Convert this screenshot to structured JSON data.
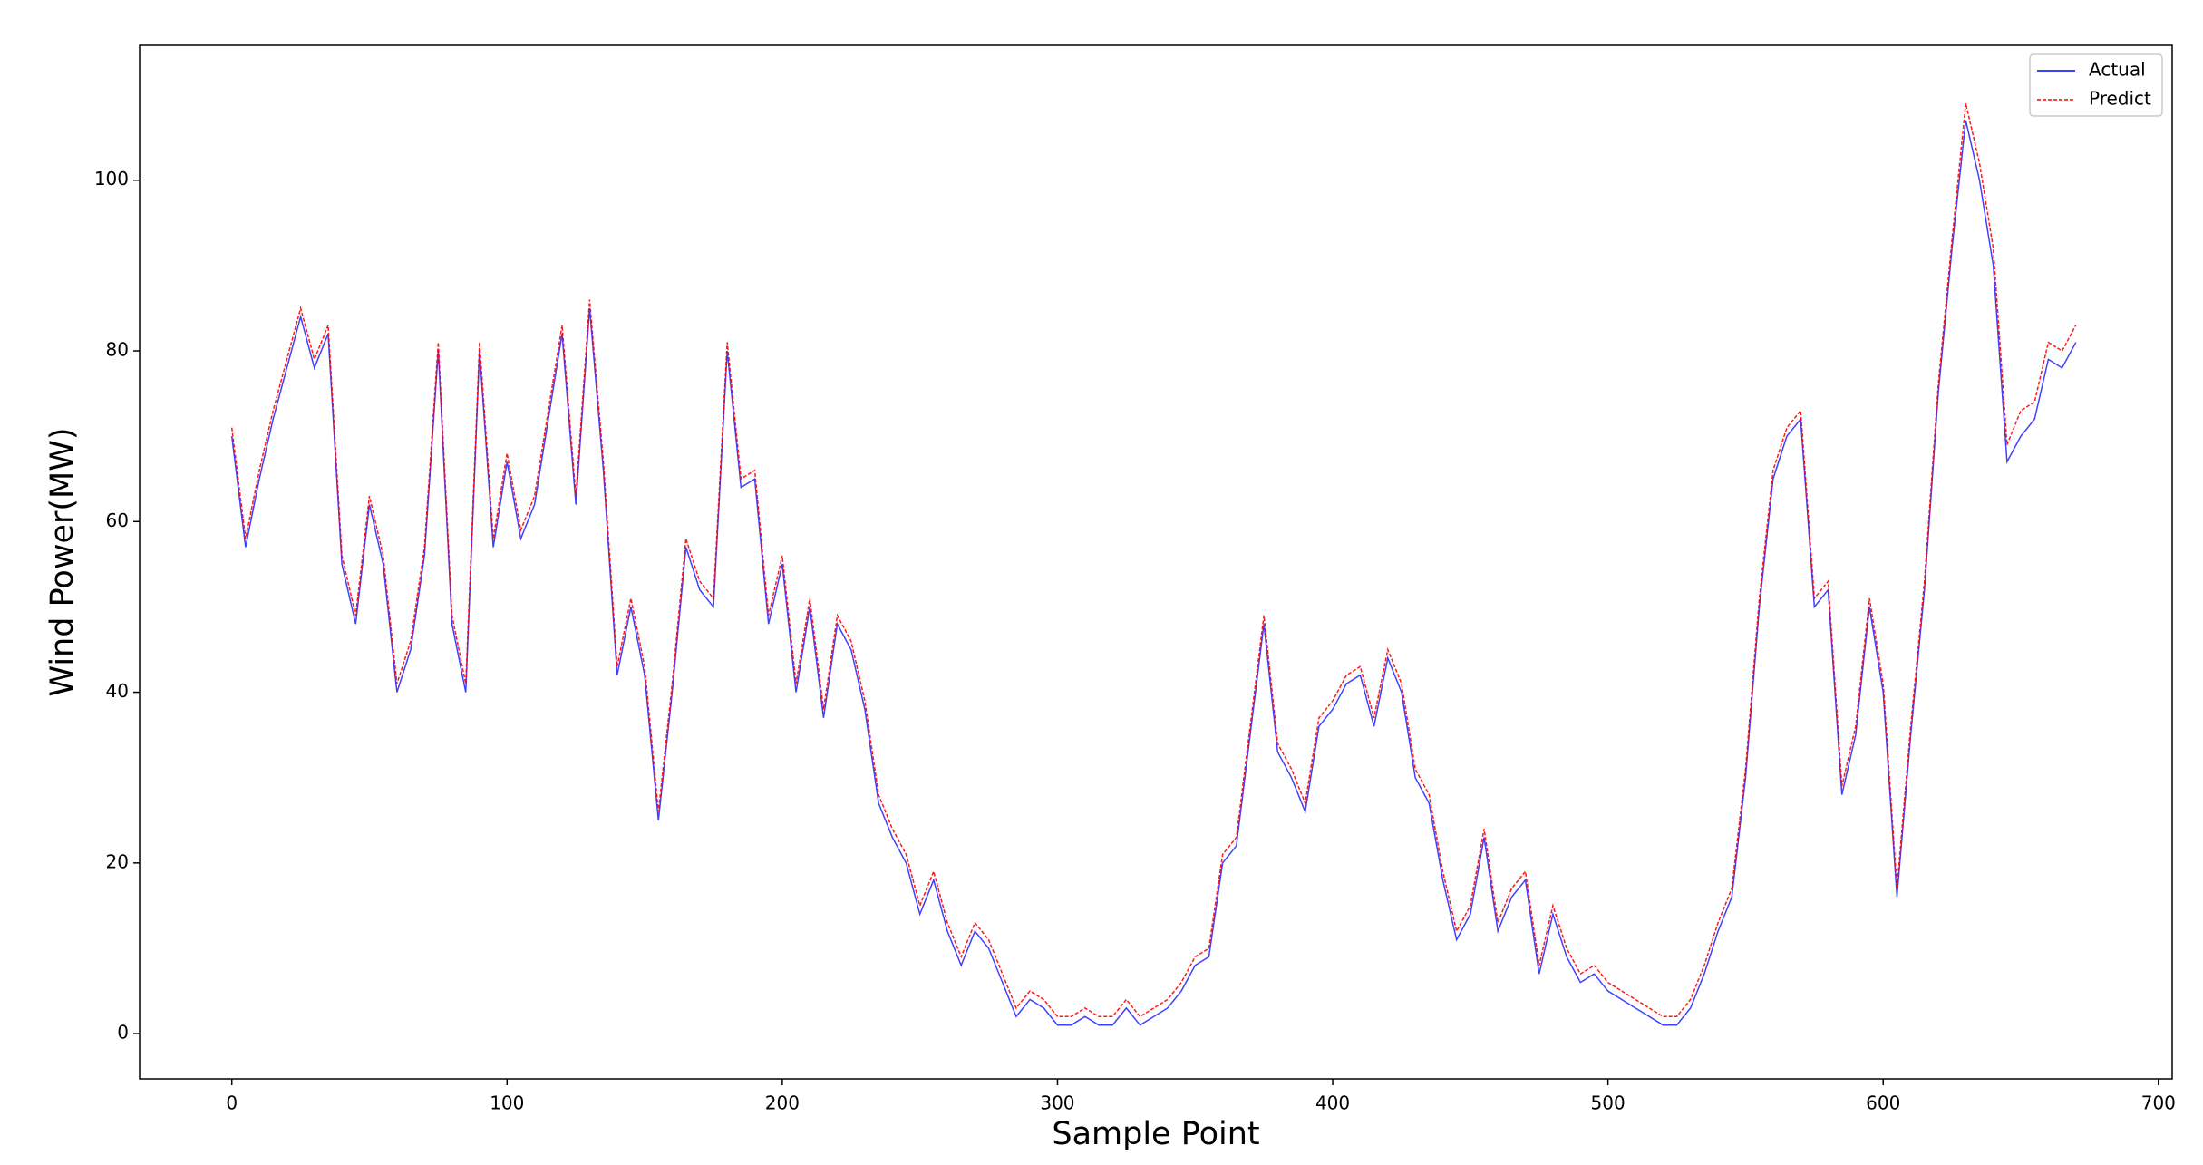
{
  "chart_data": {
    "type": "line",
    "xlabel": "Sample Point",
    "ylabel": "Wind Power(MW)",
    "x": [
      0,
      5,
      10,
      15,
      20,
      25,
      30,
      35,
      40,
      45,
      50,
      55,
      60,
      65,
      70,
      75,
      80,
      85,
      90,
      95,
      100,
      105,
      110,
      115,
      120,
      125,
      130,
      135,
      140,
      145,
      150,
      155,
      160,
      165,
      170,
      175,
      180,
      185,
      190,
      195,
      200,
      205,
      210,
      215,
      220,
      225,
      230,
      235,
      240,
      245,
      250,
      255,
      260,
      265,
      270,
      275,
      280,
      285,
      290,
      295,
      300,
      305,
      310,
      315,
      320,
      325,
      330,
      335,
      340,
      345,
      350,
      355,
      360,
      365,
      370,
      375,
      380,
      385,
      390,
      395,
      400,
      405,
      410,
      415,
      420,
      425,
      430,
      435,
      440,
      445,
      450,
      455,
      460,
      465,
      470,
      475,
      480,
      485,
      490,
      495,
      500,
      505,
      510,
      515,
      520,
      525,
      530,
      535,
      540,
      545,
      550,
      555,
      560,
      565,
      570,
      575,
      580,
      585,
      590,
      595,
      600,
      605,
      610,
      615,
      620,
      625,
      630,
      635,
      640,
      645,
      650,
      655,
      660,
      665,
      670
    ],
    "series": [
      {
        "name": "Actual",
        "color": "#0000ff",
        "dash": false,
        "values": [
          70,
          57,
          65,
          72,
          78,
          84,
          78,
          82,
          55,
          48,
          62,
          55,
          40,
          45,
          56,
          80,
          48,
          40,
          80,
          57,
          67,
          58,
          62,
          72,
          82,
          62,
          85,
          66,
          42,
          50,
          42,
          25,
          40,
          57,
          52,
          50,
          80,
          64,
          65,
          48,
          55,
          40,
          50,
          37,
          48,
          45,
          38,
          27,
          23,
          20,
          14,
          18,
          12,
          8,
          12,
          10,
          6,
          2,
          4,
          3,
          1,
          1,
          2,
          1,
          1,
          3,
          1,
          2,
          3,
          5,
          8,
          9,
          20,
          22,
          35,
          48,
          33,
          30,
          26,
          36,
          38,
          41,
          42,
          36,
          44,
          40,
          30,
          27,
          18,
          11,
          14,
          23,
          12,
          16,
          18,
          7,
          14,
          9,
          6,
          7,
          5,
          4,
          3,
          2,
          1,
          1,
          3,
          7,
          12,
          16,
          30,
          50,
          65,
          70,
          72,
          50,
          52,
          28,
          35,
          50,
          40,
          16,
          35,
          52,
          75,
          92,
          107,
          100,
          90,
          67,
          70,
          72,
          79,
          78,
          81
        ]
      },
      {
        "name": "Predict",
        "color": "#ff0000",
        "dash": true,
        "values": [
          71,
          58,
          66,
          73,
          79,
          85,
          79,
          83,
          56,
          49,
          63,
          56,
          41,
          46,
          57,
          81,
          49,
          41,
          81,
          58,
          68,
          59,
          63,
          73,
          83,
          63,
          86,
          67,
          43,
          51,
          43,
          26,
          41,
          58,
          53,
          51,
          81,
          65,
          66,
          49,
          56,
          41,
          51,
          38,
          49,
          46,
          39,
          28,
          24,
          21,
          15,
          19,
          13,
          9,
          13,
          11,
          7,
          3,
          5,
          4,
          2,
          2,
          3,
          2,
          2,
          4,
          2,
          3,
          4,
          6,
          9,
          10,
          21,
          23,
          36,
          49,
          34,
          31,
          27,
          37,
          39,
          42,
          43,
          37,
          45,
          41,
          31,
          28,
          19,
          12,
          15,
          24,
          13,
          17,
          19,
          8,
          15,
          10,
          7,
          8,
          6,
          5,
          4,
          3,
          2,
          2,
          4,
          8,
          13,
          17,
          31,
          51,
          66,
          71,
          73,
          51,
          53,
          29,
          36,
          51,
          41,
          17,
          36,
          53,
          76,
          93,
          109,
          102,
          92,
          69,
          73,
          74,
          81,
          80,
          83
        ]
      }
    ],
    "xlim": [
      -33.5,
      705
    ],
    "ylim": [
      -5.3,
      115.8
    ],
    "xticks": [
      0,
      100,
      200,
      300,
      400,
      500,
      600,
      700
    ],
    "yticks": [
      0,
      20,
      40,
      60,
      80,
      100
    ],
    "grid": false,
    "legend": "upper right"
  }
}
